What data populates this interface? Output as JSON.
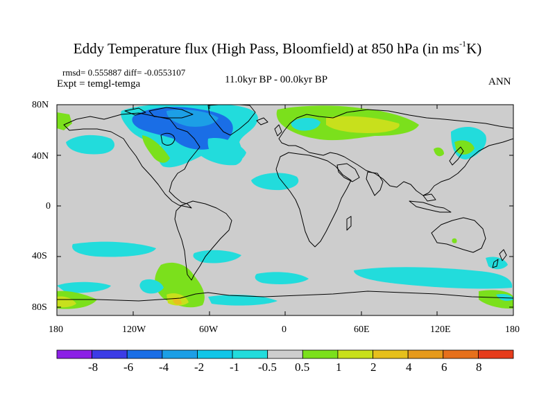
{
  "title": {
    "main": "Eddy Temperature flux (High Pass, Bloomfield) at 850 hPa (in ms",
    "superscript": "-1",
    "suffix": "K)"
  },
  "stats": {
    "rmsd": "rmsd= 0.555887 diff= -0.0553107",
    "experiment": "Expt = temgl-temga",
    "period": "11.0kyr BP - 00.0kyr BP",
    "season": "ANN"
  },
  "axes": {
    "y_labels": [
      "80N",
      "40N",
      "0",
      "40S",
      "80S"
    ],
    "x_labels": [
      "180",
      "120W",
      "60W",
      "0",
      "60E",
      "120E",
      "180"
    ]
  },
  "colorbar": {
    "labels": [
      "-8",
      "-6",
      "-4",
      "-2",
      "-1",
      "-0.5",
      "0.5",
      "1",
      "2",
      "4",
      "6",
      "8"
    ],
    "colors": [
      "#8c20e6",
      "#3c3ce6",
      "#1a6ee6",
      "#1c9fe6",
      "#10c6e8",
      "#22dcdc",
      "#cdcdcd",
      "#7be01c",
      "#c8e01c",
      "#e6c01c",
      "#e69a1c",
      "#e6701c",
      "#e63c1c"
    ]
  },
  "map_colors": {
    "land_missing": "#cdcdcd",
    "coastline": "#000000"
  }
}
